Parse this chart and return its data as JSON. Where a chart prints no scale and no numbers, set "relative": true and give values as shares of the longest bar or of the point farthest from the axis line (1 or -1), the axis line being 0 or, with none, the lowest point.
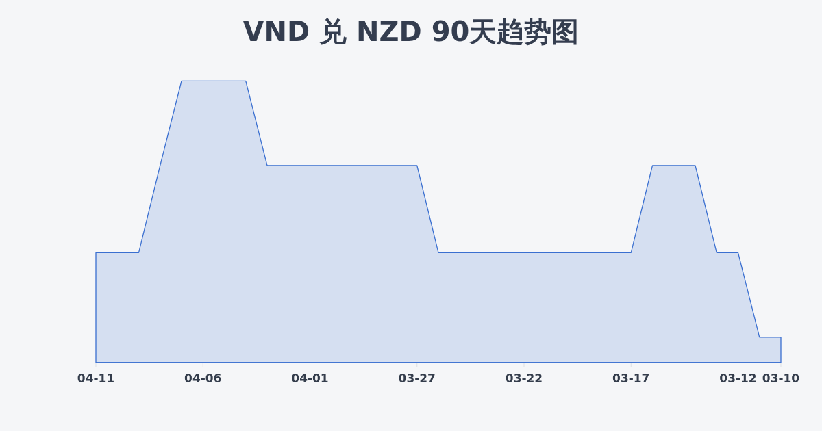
{
  "chart_data": {
    "type": "area",
    "title": "VND 兑 NZD 90天趋势图",
    "relative": true,
    "x": [
      "--04-11",
      "--04-10",
      "--04-09",
      "--04-08",
      "--04-07",
      "--04-06",
      "--04-05",
      "--04-04",
      "--04-03",
      "--04-02",
      "--04-01",
      "--03-31",
      "--03-30",
      "--03-29",
      "--03-28",
      "--03-27",
      "--03-26",
      "--03-25",
      "--03-24",
      "--03-23",
      "--03-22",
      "--03-21",
      "--03-20",
      "--03-19",
      "--03-18",
      "--03-17",
      "--03-16",
      "--03-15",
      "--03-14",
      "--03-13",
      "--03-12",
      "--03-11",
      "--03-10"
    ],
    "values": [
      0.39,
      0.39,
      0.39,
      0.7,
      1,
      1,
      1,
      1,
      0.7,
      0.7,
      0.7,
      0.7,
      0.7,
      0.7,
      0.7,
      0.7,
      0.39,
      0.39,
      0.39,
      0.39,
      0.39,
      0.39,
      0.39,
      0.39,
      0.39,
      0.39,
      0.7,
      0.7,
      0.7,
      0.39,
      0.39,
      0.09,
      0.09
    ],
    "color": "#3a6fd0",
    "xlim": [
      "--04-11",
      "--03-10"
    ],
    "xticks": [
      {
        "value": "--04-11",
        "label": "04-11"
      },
      {
        "value": "--04-06",
        "label": "04-06"
      },
      {
        "value": "--04-01",
        "label": "04-01"
      },
      {
        "value": "--03-27",
        "label": "03-27"
      },
      {
        "value": "--03-22",
        "label": "03-22"
      },
      {
        "value": "--03-17",
        "label": "03-17"
      },
      {
        "value": "--03-12",
        "label": "03-12"
      },
      {
        "value": "--03-10",
        "label": "03-10"
      }
    ]
  }
}
